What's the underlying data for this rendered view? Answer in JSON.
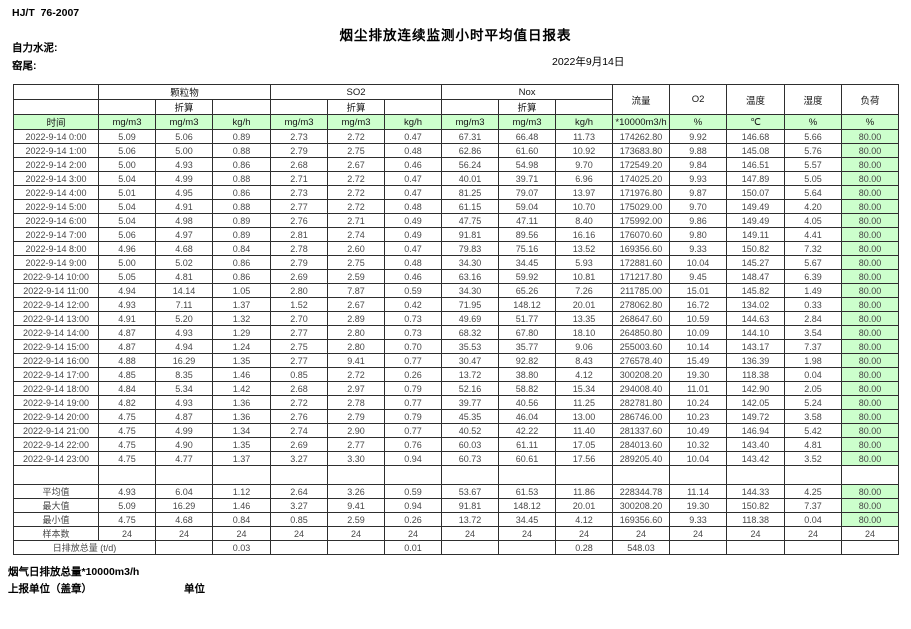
{
  "header": {
    "doc_code": "HJ/T  76-2007",
    "title": "烟尘排放连续监测小时平均值日报表",
    "company": "自力水泥:",
    "unit_line": "窑尾:",
    "date": "2022年9月14日"
  },
  "table": {
    "groups": [
      "颗粒物",
      "SO2",
      "Nox"
    ],
    "conv_label": "折算",
    "single_cols": [
      "流量",
      "O2",
      "温度",
      "湿度",
      "负荷"
    ],
    "units": [
      "时间",
      "mg/m3",
      "mg/m3",
      "kg/h",
      "mg/m3",
      "mg/m3",
      "kg/h",
      "mg/m3",
      "mg/m3",
      "kg/h",
      "*10000m3/h",
      "%",
      "℃",
      "%",
      "%"
    ],
    "rows": [
      {
        "time": "2022-9-14 0:00",
        "values": [
          "5.09",
          "5.06",
          "0.89",
          "2.73",
          "2.72",
          "0.47",
          "67.31",
          "66.48",
          "11.73",
          "174262.80",
          "9.92",
          "146.68",
          "5.66",
          "80.00"
        ]
      },
      {
        "time": "2022-9-14 1:00",
        "values": [
          "5.06",
          "5.00",
          "0.88",
          "2.79",
          "2.75",
          "0.48",
          "62.86",
          "61.60",
          "10.92",
          "173683.80",
          "9.88",
          "145.08",
          "5.76",
          "80.00"
        ]
      },
      {
        "time": "2022-9-14 2:00",
        "values": [
          "5.00",
          "4.93",
          "0.86",
          "2.68",
          "2.67",
          "0.46",
          "56.24",
          "54.98",
          "9.70",
          "172549.20",
          "9.84",
          "146.51",
          "5.57",
          "80.00"
        ]
      },
      {
        "time": "2022-9-14 3:00",
        "values": [
          "5.04",
          "4.99",
          "0.88",
          "2.71",
          "2.72",
          "0.47",
          "40.01",
          "39.71",
          "6.96",
          "174025.20",
          "9.93",
          "147.89",
          "5.05",
          "80.00"
        ]
      },
      {
        "time": "2022-9-14 4:00",
        "values": [
          "5.01",
          "4.95",
          "0.86",
          "2.73",
          "2.72",
          "0.47",
          "81.25",
          "79.07",
          "13.97",
          "171976.80",
          "9.87",
          "150.07",
          "5.64",
          "80.00"
        ]
      },
      {
        "time": "2022-9-14 5:00",
        "values": [
          "5.04",
          "4.91",
          "0.88",
          "2.77",
          "2.72",
          "0.48",
          "61.15",
          "59.04",
          "10.70",
          "175029.00",
          "9.70",
          "149.49",
          "4.20",
          "80.00"
        ]
      },
      {
        "time": "2022-9-14 6:00",
        "values": [
          "5.04",
          "4.98",
          "0.89",
          "2.76",
          "2.71",
          "0.49",
          "47.75",
          "47.11",
          "8.40",
          "175992.00",
          "9.86",
          "149.49",
          "4.05",
          "80.00"
        ]
      },
      {
        "time": "2022-9-14 7:00",
        "values": [
          "5.06",
          "4.97",
          "0.89",
          "2.81",
          "2.74",
          "0.49",
          "91.81",
          "89.56",
          "16.16",
          "176070.60",
          "9.80",
          "149.11",
          "4.41",
          "80.00"
        ]
      },
      {
        "time": "2022-9-14 8:00",
        "values": [
          "4.96",
          "4.68",
          "0.84",
          "2.78",
          "2.60",
          "0.47",
          "79.83",
          "75.16",
          "13.52",
          "169356.60",
          "9.33",
          "150.82",
          "7.32",
          "80.00"
        ]
      },
      {
        "time": "2022-9-14 9:00",
        "values": [
          "5.00",
          "5.02",
          "0.86",
          "2.79",
          "2.75",
          "0.48",
          "34.30",
          "34.45",
          "5.93",
          "172881.60",
          "10.04",
          "145.27",
          "5.67",
          "80.00"
        ]
      },
      {
        "time": "2022-9-14 10:00",
        "values": [
          "5.05",
          "4.81",
          "0.86",
          "2.69",
          "2.59",
          "0.46",
          "63.16",
          "59.92",
          "10.81",
          "171217.80",
          "9.45",
          "148.47",
          "6.39",
          "80.00"
        ]
      },
      {
        "time": "2022-9-14 11:00",
        "values": [
          "4.94",
          "14.14",
          "1.05",
          "2.80",
          "7.87",
          "0.59",
          "34.30",
          "65.26",
          "7.26",
          "211785.00",
          "15.01",
          "145.82",
          "1.49",
          "80.00"
        ]
      },
      {
        "time": "2022-9-14 12:00",
        "values": [
          "4.93",
          "7.11",
          "1.37",
          "1.52",
          "2.67",
          "0.42",
          "71.95",
          "148.12",
          "20.01",
          "278062.80",
          "16.72",
          "134.02",
          "0.33",
          "80.00"
        ]
      },
      {
        "time": "2022-9-14 13:00",
        "values": [
          "4.91",
          "5.20",
          "1.32",
          "2.70",
          "2.89",
          "0.73",
          "49.69",
          "51.77",
          "13.35",
          "268647.60",
          "10.59",
          "144.63",
          "2.84",
          "80.00"
        ]
      },
      {
        "time": "2022-9-14 14:00",
        "values": [
          "4.87",
          "4.93",
          "1.29",
          "2.77",
          "2.80",
          "0.73",
          "68.32",
          "67.80",
          "18.10",
          "264850.80",
          "10.09",
          "144.10",
          "3.54",
          "80.00"
        ]
      },
      {
        "time": "2022-9-14 15:00",
        "values": [
          "4.87",
          "4.94",
          "1.24",
          "2.75",
          "2.80",
          "0.70",
          "35.53",
          "35.77",
          "9.06",
          "255003.60",
          "10.14",
          "143.17",
          "7.37",
          "80.00"
        ]
      },
      {
        "time": "2022-9-14 16:00",
        "values": [
          "4.88",
          "16.29",
          "1.35",
          "2.77",
          "9.41",
          "0.77",
          "30.47",
          "92.82",
          "8.43",
          "276578.40",
          "15.49",
          "136.39",
          "1.98",
          "80.00"
        ]
      },
      {
        "time": "2022-9-14 17:00",
        "values": [
          "4.85",
          "8.35",
          "1.46",
          "0.85",
          "2.72",
          "0.26",
          "13.72",
          "38.80",
          "4.12",
          "300208.20",
          "19.30",
          "118.38",
          "0.04",
          "80.00"
        ]
      },
      {
        "time": "2022-9-14 18:00",
        "values": [
          "4.84",
          "5.34",
          "1.42",
          "2.68",
          "2.97",
          "0.79",
          "52.16",
          "58.82",
          "15.34",
          "294008.40",
          "11.01",
          "142.90",
          "2.05",
          "80.00"
        ]
      },
      {
        "time": "2022-9-14 19:00",
        "values": [
          "4.82",
          "4.93",
          "1.36",
          "2.72",
          "2.78",
          "0.77",
          "39.77",
          "40.56",
          "11.25",
          "282781.80",
          "10.24",
          "142.05",
          "5.24",
          "80.00"
        ]
      },
      {
        "time": "2022-9-14 20:00",
        "values": [
          "4.75",
          "4.87",
          "1.36",
          "2.76",
          "2.79",
          "0.79",
          "45.35",
          "46.04",
          "13.00",
          "286746.00",
          "10.23",
          "149.72",
          "3.58",
          "80.00"
        ]
      },
      {
        "time": "2022-9-14 21:00",
        "values": [
          "4.75",
          "4.99",
          "1.34",
          "2.74",
          "2.90",
          "0.77",
          "40.52",
          "42.22",
          "11.40",
          "281337.60",
          "10.49",
          "146.94",
          "5.42",
          "80.00"
        ]
      },
      {
        "time": "2022-9-14 22:00",
        "values": [
          "4.75",
          "4.90",
          "1.35",
          "2.69",
          "2.77",
          "0.76",
          "60.03",
          "61.11",
          "17.05",
          "284013.60",
          "10.32",
          "143.40",
          "4.81",
          "80.00"
        ]
      },
      {
        "time": "2022-9-14 23:00",
        "values": [
          "4.75",
          "4.77",
          "1.37",
          "3.27",
          "3.30",
          "0.94",
          "60.73",
          "60.61",
          "17.56",
          "289205.40",
          "10.04",
          "143.42",
          "3.52",
          "80.00"
        ]
      }
    ],
    "summary": [
      {
        "label": "平均值",
        "values": [
          "4.93",
          "6.04",
          "1.12",
          "2.64",
          "3.26",
          "0.59",
          "53.67",
          "61.53",
          "11.86",
          "228344.78",
          "11.14",
          "144.33",
          "4.25",
          "80.00"
        ]
      },
      {
        "label": "最大值",
        "values": [
          "5.09",
          "16.29",
          "1.46",
          "3.27",
          "9.41",
          "0.94",
          "91.81",
          "148.12",
          "20.01",
          "300208.20",
          "19.30",
          "150.82",
          "7.37",
          "80.00"
        ]
      },
      {
        "label": "最小值",
        "values": [
          "4.75",
          "4.68",
          "0.84",
          "0.85",
          "2.59",
          "0.26",
          "13.72",
          "34.45",
          "4.12",
          "169356.60",
          "9.33",
          "118.38",
          "0.04",
          "80.00"
        ]
      },
      {
        "label": "样本数",
        "values": [
          "24",
          "24",
          "24",
          "24",
          "24",
          "24",
          "24",
          "24",
          "24",
          "24",
          "24",
          "24",
          "24",
          "24"
        ]
      }
    ],
    "total_row": {
      "label": "日排放总量 (t/d)",
      "values": [
        "",
        "0.03",
        "",
        "",
        "0.01",
        "",
        "",
        "0.28",
        "548.03",
        "",
        "",
        "",
        ""
      ]
    }
  },
  "footer": {
    "line1": "烟气日排放总量*10000m3/h",
    "line2_left": "上报单位（盖章）",
    "line2_right": "单位"
  },
  "colors": {
    "header_green": "#ccffcc",
    "load_column_green": "#ccffcc"
  }
}
